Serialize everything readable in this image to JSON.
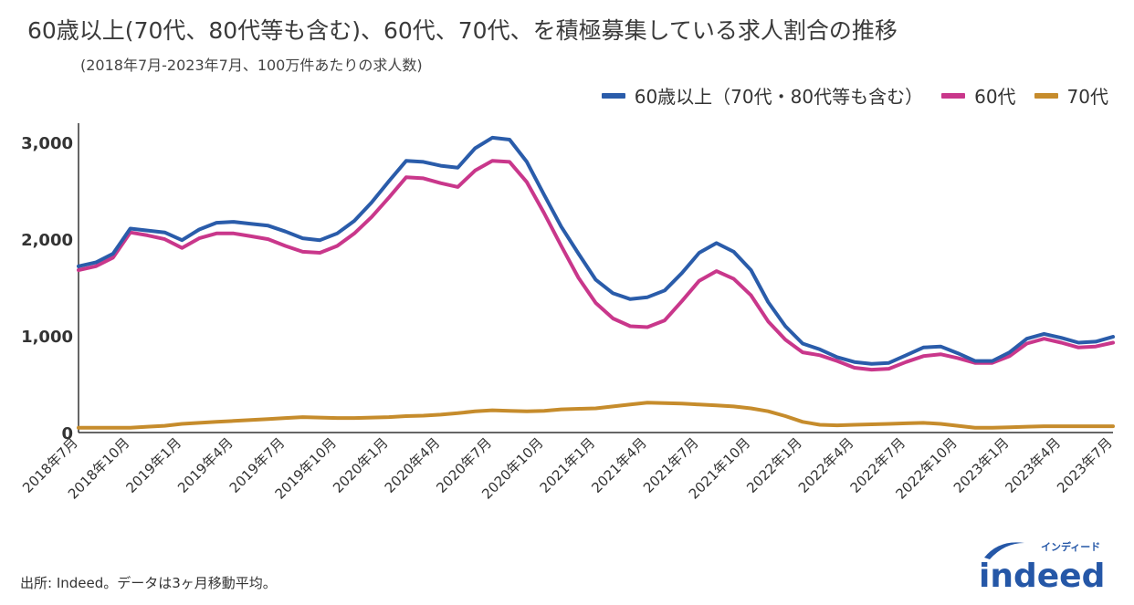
{
  "header": {
    "title": "60歳以上(70代、80代等も含む)、60代、70代、を積極募集している求人割合の推移",
    "subtitle": "(2018年7月-2023年7月、100万件あたりの求人数)"
  },
  "footer": {
    "source": "出所: Indeed。データは3ヶ月移動平均。"
  },
  "logo": {
    "text": "indeed",
    "kana": "インディード",
    "color": "#2557a7"
  },
  "chart_data": {
    "type": "line",
    "x": [
      "2018年7月",
      "2018年8月",
      "2018年9月",
      "2018年10月",
      "2018年11月",
      "2018年12月",
      "2019年1月",
      "2019年2月",
      "2019年3月",
      "2019年4月",
      "2019年5月",
      "2019年6月",
      "2019年7月",
      "2019年8月",
      "2019年9月",
      "2019年10月",
      "2019年11月",
      "2019年12月",
      "2020年1月",
      "2020年2月",
      "2020年3月",
      "2020年4月",
      "2020年5月",
      "2020年6月",
      "2020年7月",
      "2020年8月",
      "2020年9月",
      "2020年10月",
      "2020年11月",
      "2020年12月",
      "2021年1月",
      "2021年2月",
      "2021年3月",
      "2021年4月",
      "2021年5月",
      "2021年6月",
      "2021年7月",
      "2021年8月",
      "2021年9月",
      "2021年10月",
      "2021年11月",
      "2021年12月",
      "2022年1月",
      "2022年2月",
      "2022年3月",
      "2022年4月",
      "2022年5月",
      "2022年6月",
      "2022年7月",
      "2022年8月",
      "2022年9月",
      "2022年10月",
      "2022年11月",
      "2022年12月",
      "2023年1月",
      "2023年2月",
      "2023年3月",
      "2023年4月",
      "2023年5月",
      "2023年6月",
      "2023年7月"
    ],
    "tick_labels": [
      "2018年7月",
      "2018年10月",
      "2019年1月",
      "2019年4月",
      "2019年7月",
      "2019年10月",
      "2020年1月",
      "2020年4月",
      "2020年7月",
      "2020年10月",
      "2021年1月",
      "2021年4月",
      "2021年7月",
      "2021年10月",
      "2022年1月",
      "2022年4月",
      "2022年7月",
      "2022年10月",
      "2023年1月",
      "2023年4月",
      "2023年7月"
    ],
    "series": [
      {
        "name": "60歳以上（70代・80代等も含む）",
        "color": "#2a5caa",
        "values": [
          1720,
          1760,
          1850,
          2110,
          2090,
          2070,
          1990,
          2100,
          2170,
          2180,
          2160,
          2140,
          2080,
          2010,
          1990,
          2060,
          2190,
          2380,
          2600,
          2810,
          2800,
          2760,
          2740,
          2940,
          3050,
          3030,
          2800,
          2460,
          2130,
          1850,
          1580,
          1440,
          1380,
          1400,
          1470,
          1650,
          1860,
          1960,
          1870,
          1680,
          1350,
          1100,
          920,
          860,
          780,
          730,
          710,
          720,
          800,
          880,
          890,
          820,
          740,
          740,
          830,
          970,
          1020,
          980,
          930,
          940,
          990
        ]
      },
      {
        "name": "60代",
        "color": "#c9378b",
        "values": [
          1680,
          1720,
          1810,
          2070,
          2040,
          2000,
          1910,
          2010,
          2060,
          2060,
          2030,
          2000,
          1930,
          1870,
          1860,
          1930,
          2060,
          2230,
          2430,
          2640,
          2630,
          2580,
          2540,
          2710,
          2810,
          2800,
          2590,
          2270,
          1930,
          1600,
          1340,
          1180,
          1100,
          1090,
          1160,
          1360,
          1570,
          1670,
          1590,
          1420,
          1150,
          960,
          830,
          800,
          740,
          670,
          650,
          660,
          730,
          790,
          810,
          770,
          720,
          720,
          790,
          920,
          970,
          930,
          880,
          890,
          930
        ]
      },
      {
        "name": "70代",
        "color": "#c68c2c",
        "values": [
          50,
          50,
          50,
          50,
          60,
          70,
          90,
          100,
          110,
          120,
          130,
          140,
          150,
          160,
          155,
          150,
          150,
          155,
          160,
          170,
          175,
          185,
          200,
          220,
          230,
          225,
          220,
          225,
          240,
          245,
          250,
          270,
          290,
          310,
          305,
          300,
          290,
          280,
          270,
          250,
          220,
          170,
          110,
          80,
          75,
          80,
          85,
          90,
          95,
          100,
          90,
          70,
          50,
          50,
          55,
          60,
          65,
          65,
          65,
          65,
          65
        ]
      }
    ],
    "ylim": [
      0,
      3200
    ],
    "yticks": [
      0,
      1000,
      2000,
      3000
    ],
    "ytick_labels": [
      "0",
      "1,000",
      "2,000",
      "3,000"
    ],
    "xlabel": "",
    "ylabel": "",
    "grid": false,
    "legend": "top-right"
  }
}
